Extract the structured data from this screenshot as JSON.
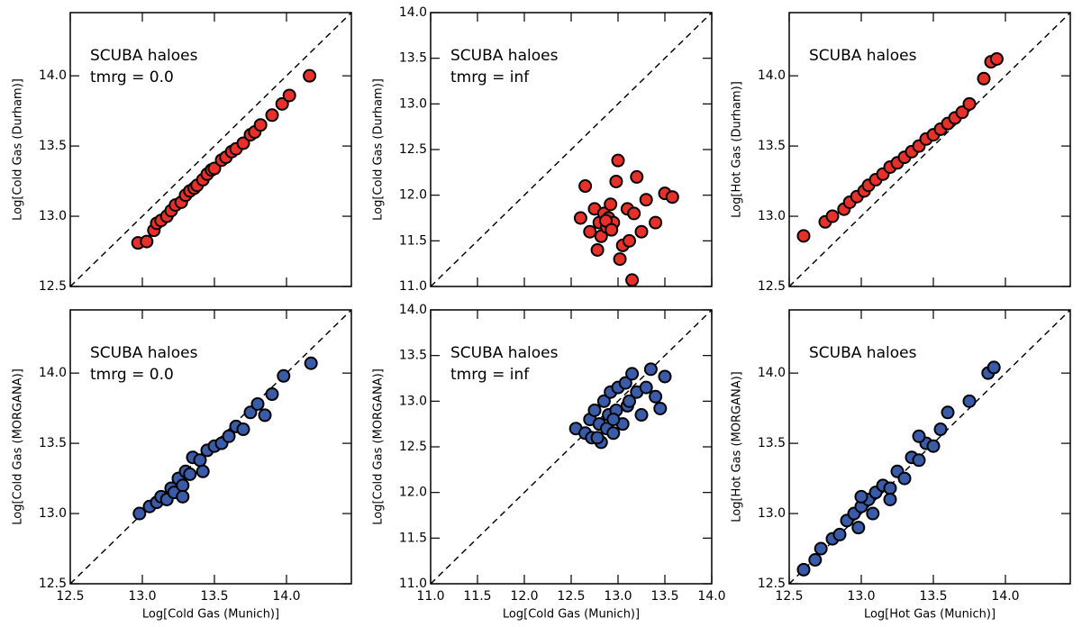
{
  "chart_data": [
    {
      "type": "scatter",
      "color": "#e8302a",
      "edge_color": "#000000",
      "identity_line": true,
      "xtick_labels": false,
      "ylabel": "Log[Cold Gas (Durham)]",
      "annotations": [
        "SCUBA haloes",
        "tmrg = 0.0"
      ],
      "xlim": [
        12.5,
        14.45
      ],
      "ylim": [
        12.5,
        14.45
      ],
      "xticks": [
        12.5,
        {
          "value": 13,
          "label": "13.0"
        },
        13.5,
        {
          "value": 14,
          "label": "14.0"
        }
      ],
      "yticks": [
        12.5,
        {
          "value": 13,
          "label": "13.0"
        },
        13.5,
        {
          "value": 14,
          "label": "14.0"
        }
      ],
      "x": [
        12.97,
        13.03,
        13.08,
        13.1,
        13.13,
        13.17,
        13.2,
        13.23,
        13.27,
        13.3,
        13.33,
        13.36,
        13.38,
        13.42,
        13.45,
        13.48,
        13.5,
        13.55,
        13.58,
        13.62,
        13.65,
        13.7,
        13.75,
        13.78,
        13.82,
        13.9,
        13.97,
        14.02,
        14.16
      ],
      "y": [
        12.81,
        12.82,
        12.9,
        12.95,
        12.97,
        13.0,
        13.04,
        13.08,
        13.1,
        13.15,
        13.18,
        13.2,
        13.22,
        13.26,
        13.3,
        13.33,
        13.34,
        13.4,
        13.42,
        13.46,
        13.48,
        13.52,
        13.58,
        13.6,
        13.65,
        13.72,
        13.8,
        13.86,
        14.0
      ]
    },
    {
      "type": "scatter",
      "color": "#e8302a",
      "edge_color": "#000000",
      "identity_line": true,
      "xtick_labels": false,
      "ylabel": "Log[Cold Gas (Durham)]",
      "annotations": [
        "SCUBA haloes",
        "tmrg = inf"
      ],
      "xlim": [
        11,
        14
      ],
      "ylim": [
        11,
        14
      ],
      "xticks": [
        {
          "value": 11,
          "label": "11.0"
        },
        11.5,
        {
          "value": 12,
          "label": "12.0"
        },
        12.5,
        {
          "value": 13,
          "label": "13.0"
        },
        13.5,
        {
          "value": 14,
          "label": "14.0"
        }
      ],
      "yticks": [
        {
          "value": 11,
          "label": "11.0"
        },
        11.5,
        {
          "value": 12,
          "label": "12.0"
        },
        12.5,
        {
          "value": 13,
          "label": "13.0"
        },
        13.5,
        {
          "value": 14,
          "label": "14.0"
        }
      ],
      "x": [
        12.6,
        12.7,
        12.75,
        12.8,
        12.82,
        12.85,
        12.88,
        12.9,
        12.92,
        12.95,
        13.0,
        13.05,
        13.1,
        13.15,
        13.2,
        13.25,
        13.3,
        13.4,
        13.5,
        13.58,
        12.65,
        12.78,
        12.87,
        13.02,
        13.12,
        12.98,
        13.17,
        12.93
      ],
      "y": [
        11.75,
        11.6,
        11.85,
        11.7,
        11.55,
        11.8,
        11.65,
        11.75,
        11.9,
        11.7,
        12.38,
        11.45,
        11.85,
        11.07,
        12.2,
        11.6,
        11.95,
        11.7,
        12.02,
        11.98,
        12.1,
        11.4,
        11.72,
        11.3,
        11.5,
        12.15,
        11.8,
        11.62
      ]
    },
    {
      "type": "scatter",
      "color": "#e8302a",
      "edge_color": "#000000",
      "identity_line": true,
      "xtick_labels": false,
      "ylabel": "Log[Hot Gas (Durham)]",
      "annotations": [
        "SCUBA haloes"
      ],
      "xlim": [
        12.5,
        14.45
      ],
      "ylim": [
        12.5,
        14.45
      ],
      "xticks": [
        12.5,
        {
          "value": 13,
          "label": "13.0"
        },
        13.5,
        {
          "value": 14,
          "label": "14.0"
        }
      ],
      "yticks": [
        12.5,
        {
          "value": 13,
          "label": "13.0"
        },
        13.5,
        {
          "value": 14,
          "label": "14.0"
        }
      ],
      "x": [
        12.6,
        12.75,
        12.8,
        12.88,
        12.92,
        12.97,
        13.02,
        13.05,
        13.1,
        13.15,
        13.2,
        13.25,
        13.3,
        13.35,
        13.4,
        13.45,
        13.5,
        13.55,
        13.6,
        13.65,
        13.7,
        13.75,
        13.85,
        13.9,
        13.94
      ],
      "y": [
        12.86,
        12.96,
        13.0,
        13.05,
        13.1,
        13.14,
        13.18,
        13.22,
        13.26,
        13.3,
        13.35,
        13.38,
        13.42,
        13.46,
        13.5,
        13.55,
        13.58,
        13.62,
        13.66,
        13.7,
        13.74,
        13.8,
        13.98,
        14.1,
        14.12
      ]
    },
    {
      "type": "scatter",
      "color": "#3a5ba8",
      "edge_color": "#000000",
      "identity_line": true,
      "xtick_labels": true,
      "xlabel": "Log[Cold Gas (Munich)]",
      "ylabel": "Log[Cold Gas (MORGANA)]",
      "annotations": [
        "SCUBA haloes",
        "tmrg = 0.0"
      ],
      "xlim": [
        12.5,
        14.45
      ],
      "ylim": [
        12.5,
        14.45
      ],
      "xticks": [
        12.5,
        {
          "value": 13,
          "label": "13.0"
        },
        13.5,
        {
          "value": 14,
          "label": "14.0"
        }
      ],
      "yticks": [
        12.5,
        {
          "value": 13,
          "label": "13.0"
        },
        13.5,
        {
          "value": 14,
          "label": "14.0"
        }
      ],
      "x": [
        12.98,
        13.05,
        13.1,
        13.13,
        13.17,
        13.2,
        13.22,
        13.25,
        13.28,
        13.3,
        13.33,
        13.35,
        13.4,
        13.45,
        13.5,
        13.55,
        13.6,
        13.65,
        13.7,
        13.75,
        13.8,
        13.85,
        13.9,
        13.98,
        14.17,
        13.28,
        13.42
      ],
      "y": [
        13.0,
        13.05,
        13.08,
        13.12,
        13.1,
        13.18,
        13.15,
        13.25,
        13.2,
        13.3,
        13.28,
        13.4,
        13.38,
        13.45,
        13.48,
        13.5,
        13.55,
        13.62,
        13.6,
        13.72,
        13.78,
        13.7,
        13.85,
        13.98,
        14.07,
        13.12,
        13.3
      ]
    },
    {
      "type": "scatter",
      "color": "#3a5ba8",
      "edge_color": "#000000",
      "identity_line": true,
      "xtick_labels": true,
      "xlabel": "Log[Cold Gas (Munich)]",
      "ylabel": "Log[Cold Gas (MORGANA)]",
      "annotations": [
        "SCUBA haloes",
        "tmrg = inf"
      ],
      "xlim": [
        11,
        14
      ],
      "ylim": [
        11,
        14
      ],
      "xticks": [
        {
          "value": 11,
          "label": "11.0"
        },
        11.5,
        {
          "value": 12,
          "label": "12.0"
        },
        12.5,
        {
          "value": 13,
          "label": "13.0"
        },
        13.5,
        {
          "value": 14,
          "label": "14.0"
        }
      ],
      "yticks": [
        {
          "value": 11,
          "label": "11.0"
        },
        11.5,
        {
          "value": 12,
          "label": "12.0"
        },
        12.5,
        {
          "value": 13,
          "label": "13.0"
        },
        13.5,
        {
          "value": 14,
          "label": "14.0"
        }
      ],
      "x": [
        12.55,
        12.65,
        12.7,
        12.72,
        12.75,
        12.8,
        12.82,
        12.85,
        12.88,
        12.9,
        12.92,
        12.95,
        12.98,
        13.0,
        13.05,
        13.08,
        13.1,
        13.15,
        13.2,
        13.25,
        13.3,
        13.35,
        13.4,
        13.5,
        12.78,
        12.95,
        13.12,
        13.45
      ],
      "y": [
        12.7,
        12.65,
        12.8,
        12.6,
        12.9,
        12.75,
        12.55,
        13.0,
        12.7,
        12.85,
        13.1,
        12.65,
        12.9,
        13.15,
        12.75,
        13.2,
        12.95,
        13.3,
        13.1,
        12.85,
        13.15,
        13.35,
        13.05,
        13.27,
        12.6,
        12.8,
        13.0,
        12.92
      ]
    },
    {
      "type": "scatter",
      "color": "#3a5ba8",
      "edge_color": "#000000",
      "identity_line": true,
      "xtick_labels": true,
      "xlabel": "Log[Hot Gas (Munich)]",
      "ylabel": "Log[Hot Gas (MORGANA)]",
      "annotations": [
        "SCUBA haloes"
      ],
      "xlim": [
        12.5,
        14.45
      ],
      "ylim": [
        12.5,
        14.45
      ],
      "xticks": [
        12.5,
        {
          "value": 13,
          "label": "13.0"
        },
        13.5,
        {
          "value": 14,
          "label": "14.0"
        }
      ],
      "yticks": [
        12.5,
        {
          "value": 13,
          "label": "13.0"
        },
        13.5,
        {
          "value": 14,
          "label": "14.0"
        }
      ],
      "x": [
        12.6,
        12.68,
        12.72,
        12.8,
        12.85,
        12.9,
        12.95,
        12.98,
        13.0,
        13.05,
        13.08,
        13.1,
        13.15,
        13.2,
        13.25,
        13.3,
        13.35,
        13.4,
        13.45,
        13.5,
        13.55,
        13.6,
        13.75,
        13.88,
        13.92,
        13.0,
        13.2,
        13.4
      ],
      "y": [
        12.6,
        12.67,
        12.75,
        12.82,
        12.85,
        12.95,
        13.0,
        12.9,
        13.05,
        13.1,
        13.0,
        13.15,
        13.2,
        13.18,
        13.3,
        13.25,
        13.4,
        13.38,
        13.5,
        13.48,
        13.6,
        13.72,
        13.8,
        14.0,
        14.04,
        13.12,
        13.1,
        13.55
      ]
    }
  ]
}
